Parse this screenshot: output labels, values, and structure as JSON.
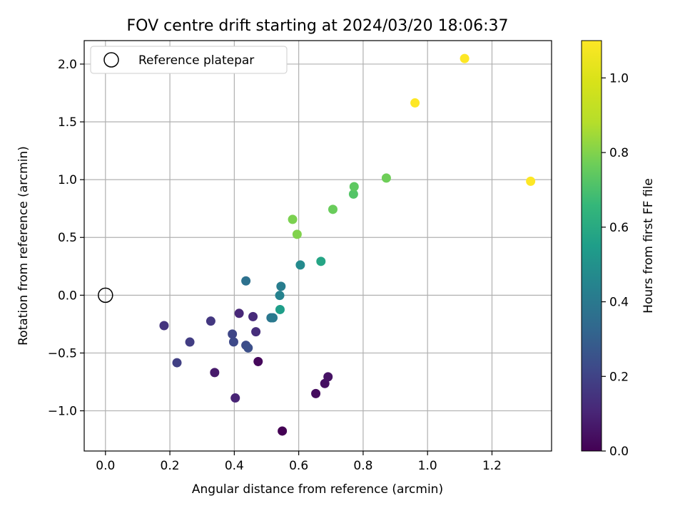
{
  "chart_data": {
    "type": "scatter",
    "title": "FOV centre drift starting at 2024/03/20 18:06:37",
    "xlabel": "Angular distance from reference (arcmin)",
    "ylabel": "Rotation from reference (arcmin)",
    "xlim": [
      -0.066,
      1.385
    ],
    "ylim": [
      -1.348,
      2.203
    ],
    "xticks": [
      0.0,
      0.2,
      0.4,
      0.6,
      0.8,
      1.0,
      1.2
    ],
    "xtick_labels": [
      "0.0",
      "0.2",
      "0.4",
      "0.6",
      "0.8",
      "1.0",
      "1.2"
    ],
    "yticks": [
      -1.0,
      -0.5,
      0.0,
      0.5,
      1.0,
      1.5,
      2.0
    ],
    "ytick_labels": [
      "−1.0",
      "−0.5",
      "0.0",
      "0.5",
      "1.0",
      "1.5",
      "2.0"
    ],
    "grid": true,
    "legend": {
      "position": "upper-left",
      "entries": [
        "Reference platepar"
      ]
    },
    "reference_point": {
      "x": 0.0,
      "y": 0.0
    },
    "colorbar": {
      "label": "Hours from first FF file",
      "colormap": "viridis",
      "range": [
        0.0,
        1.1
      ],
      "ticks": [
        0.0,
        0.2,
        0.4,
        0.6,
        0.8,
        1.0
      ],
      "tick_labels": [
        "0.0",
        "0.2",
        "0.4",
        "0.6",
        "0.8",
        "1.0"
      ]
    },
    "points": [
      {
        "x": 0.549,
        "y": -1.175,
        "hours": 0.0
      },
      {
        "x": 0.474,
        "y": -0.574,
        "hours": 0.02
      },
      {
        "x": 0.653,
        "y": -0.851,
        "hours": 0.03
      },
      {
        "x": 0.681,
        "y": -0.764,
        "hours": 0.04
      },
      {
        "x": 0.691,
        "y": -0.706,
        "hours": 0.05
      },
      {
        "x": 0.339,
        "y": -0.669,
        "hours": 0.07
      },
      {
        "x": 0.403,
        "y": -0.889,
        "hours": 0.1
      },
      {
        "x": 0.415,
        "y": -0.157,
        "hours": 0.11
      },
      {
        "x": 0.458,
        "y": -0.185,
        "hours": 0.12
      },
      {
        "x": 0.467,
        "y": -0.316,
        "hours": 0.13
      },
      {
        "x": 0.182,
        "y": -0.263,
        "hours": 0.15
      },
      {
        "x": 0.327,
        "y": -0.224,
        "hours": 0.16
      },
      {
        "x": 0.262,
        "y": -0.405,
        "hours": 0.18
      },
      {
        "x": 0.222,
        "y": -0.584,
        "hours": 0.19
      },
      {
        "x": 0.394,
        "y": -0.336,
        "hours": 0.21
      },
      {
        "x": 0.398,
        "y": -0.404,
        "hours": 0.22
      },
      {
        "x": 0.436,
        "y": -0.433,
        "hours": 0.23
      },
      {
        "x": 0.443,
        "y": -0.456,
        "hours": 0.24
      },
      {
        "x": 0.436,
        "y": 0.124,
        "hours": 0.37
      },
      {
        "x": 0.514,
        "y": -0.195,
        "hours": 0.39
      },
      {
        "x": 0.52,
        "y": -0.195,
        "hours": 0.4
      },
      {
        "x": 0.545,
        "y": 0.077,
        "hours": 0.42
      },
      {
        "x": 0.541,
        "y": -0.002,
        "hours": 0.44
      },
      {
        "x": 0.605,
        "y": 0.262,
        "hours": 0.47
      },
      {
        "x": 0.542,
        "y": -0.124,
        "hours": 0.55
      },
      {
        "x": 0.669,
        "y": 0.293,
        "hours": 0.58
      },
      {
        "x": 0.77,
        "y": 0.875,
        "hours": 0.72
      },
      {
        "x": 0.772,
        "y": 0.939,
        "hours": 0.74
      },
      {
        "x": 0.706,
        "y": 0.743,
        "hours": 0.76
      },
      {
        "x": 0.872,
        "y": 1.014,
        "hours": 0.77
      },
      {
        "x": 0.581,
        "y": 0.656,
        "hours": 0.79
      },
      {
        "x": 0.595,
        "y": 0.527,
        "hours": 0.8
      },
      {
        "x": 0.961,
        "y": 1.664,
        "hours": 1.1
      },
      {
        "x": 1.115,
        "y": 2.048,
        "hours": 1.1
      },
      {
        "x": 1.32,
        "y": 0.986,
        "hours": 1.1
      }
    ]
  }
}
